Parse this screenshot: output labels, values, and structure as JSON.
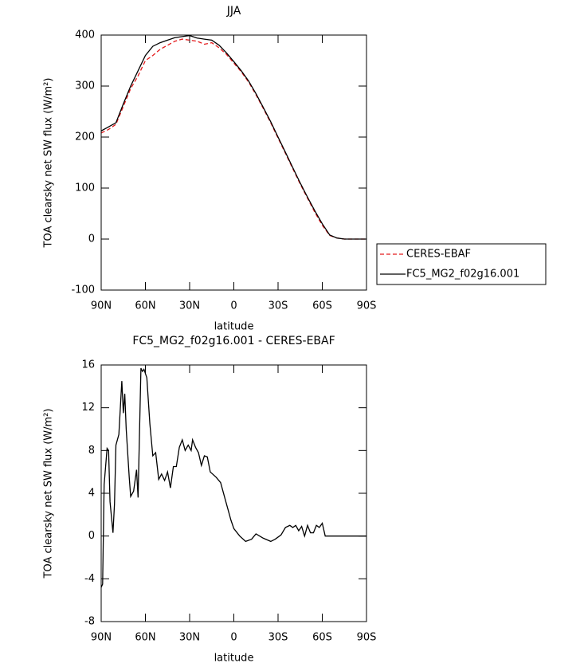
{
  "chart_data": [
    {
      "type": "line",
      "title": "JJA",
      "xlabel": "latitude",
      "ylabel": "TOA clearsky net SW flux (W/m²)",
      "x": [
        90,
        85,
        80,
        75,
        70,
        65,
        60,
        55,
        50,
        45,
        40,
        35,
        30,
        25,
        20,
        15,
        10,
        5,
        0,
        -5,
        -10,
        -15,
        -20,
        -25,
        -30,
        -35,
        -40,
        -45,
        -50,
        -55,
        -60,
        -65,
        -70,
        -75,
        -80,
        -85,
        -90
      ],
      "series": [
        {
          "name": "CERES-EBAF",
          "color": "#e41a1c",
          "linestyle": "dashed",
          "values": [
            208,
            215,
            225,
            260,
            295,
            320,
            350,
            360,
            372,
            380,
            388,
            392,
            390,
            388,
            382,
            385,
            375,
            362,
            345,
            328,
            308,
            283,
            256,
            228,
            198,
            168,
            138,
            108,
            80,
            52,
            27,
            7,
            2,
            0,
            0,
            0,
            0
          ]
        },
        {
          "name": "FC5_MG2_f02g16.001",
          "color": "#000000",
          "linestyle": "solid",
          "values": [
            212,
            220,
            228,
            265,
            300,
            330,
            360,
            378,
            385,
            390,
            395,
            397,
            399,
            394,
            392,
            390,
            380,
            365,
            348,
            330,
            310,
            285,
            258,
            230,
            200,
            170,
            140,
            110,
            82,
            55,
            30,
            8,
            2,
            0,
            0,
            0,
            0
          ]
        }
      ],
      "xlim": [
        90,
        -90
      ],
      "xticks": [
        {
          "value": 90,
          "label": "90N"
        },
        {
          "value": 60,
          "label": "60N"
        },
        {
          "value": 30,
          "label": "30N"
        },
        0,
        {
          "value": -30,
          "label": "30S"
        },
        {
          "value": -60,
          "label": "60S"
        },
        {
          "value": -90,
          "label": "90S"
        }
      ],
      "ylim": [
        -100,
        400
      ],
      "yticks": [
        -100,
        0,
        100,
        200,
        300,
        400
      ],
      "legend": "outside-right"
    },
    {
      "type": "line",
      "title": "FC5_MG2_f02g16.001 - CERES-EBAF",
      "xlabel": "latitude",
      "ylabel": "TOA clearsky net SW flux (W/m²)",
      "x": [
        90,
        89,
        88,
        86,
        85,
        84,
        82,
        81,
        80,
        78,
        76,
        75,
        74,
        73,
        71,
        70,
        68,
        66,
        65,
        63,
        62,
        61,
        59,
        57,
        55,
        53,
        51,
        49,
        47,
        45,
        43,
        41,
        39,
        37,
        35,
        33,
        31,
        29,
        28,
        26,
        24,
        22,
        20,
        18,
        16,
        12,
        9,
        6,
        4,
        2,
        0,
        -4,
        -8,
        -12,
        -15,
        -20,
        -25,
        -28,
        -32,
        -35,
        -38,
        -40,
        -42,
        -44,
        -46,
        -48,
        -50,
        -52,
        -54,
        -56,
        -58,
        -60,
        -62,
        -64,
        -66,
        -70,
        -75,
        -80,
        -85,
        -90
      ],
      "series": [
        {
          "color": "#000000",
          "values": [
            -4.8,
            -4.5,
            4.8,
            8.2,
            8,
            3.2,
            0.3,
            3,
            8.5,
            9.5,
            14.5,
            11.5,
            13.3,
            10,
            5.5,
            3.7,
            4.2,
            6.2,
            3.6,
            15.7,
            15.4,
            15.6,
            14.8,
            10.5,
            7.5,
            7.8,
            5.3,
            5.8,
            5.2,
            6.0,
            4.5,
            6.5,
            6.5,
            8.3,
            9.0,
            8.0,
            8.5,
            8.0,
            9,
            8.3,
            7.8,
            6.6,
            7.5,
            7.4,
            6,
            5.5,
            5.0,
            3.5,
            2.5,
            1.5,
            0.7,
            0,
            -0.5,
            -0.3,
            0.2,
            -0.2,
            -0.5,
            -0.3,
            0.1,
            0.8,
            1.0,
            0.8,
            1.0,
            0.5,
            0.9,
            0,
            1.0,
            0.3,
            0.3,
            1.0,
            0.8,
            1.2,
            0,
            0,
            0,
            0,
            0,
            0,
            0,
            0
          ]
        }
      ],
      "xlim": [
        90,
        -90
      ],
      "xticks": [
        {
          "value": 90,
          "label": "90N"
        },
        {
          "value": 60,
          "label": "60N"
        },
        {
          "value": 30,
          "label": "30N"
        },
        0,
        {
          "value": -30,
          "label": "30S"
        },
        {
          "value": -60,
          "label": "60S"
        },
        {
          "value": -90,
          "label": "90S"
        }
      ],
      "ylim": [
        -8,
        16
      ],
      "yticks": [
        -8,
        -4,
        0,
        4,
        8,
        12,
        16
      ]
    }
  ]
}
